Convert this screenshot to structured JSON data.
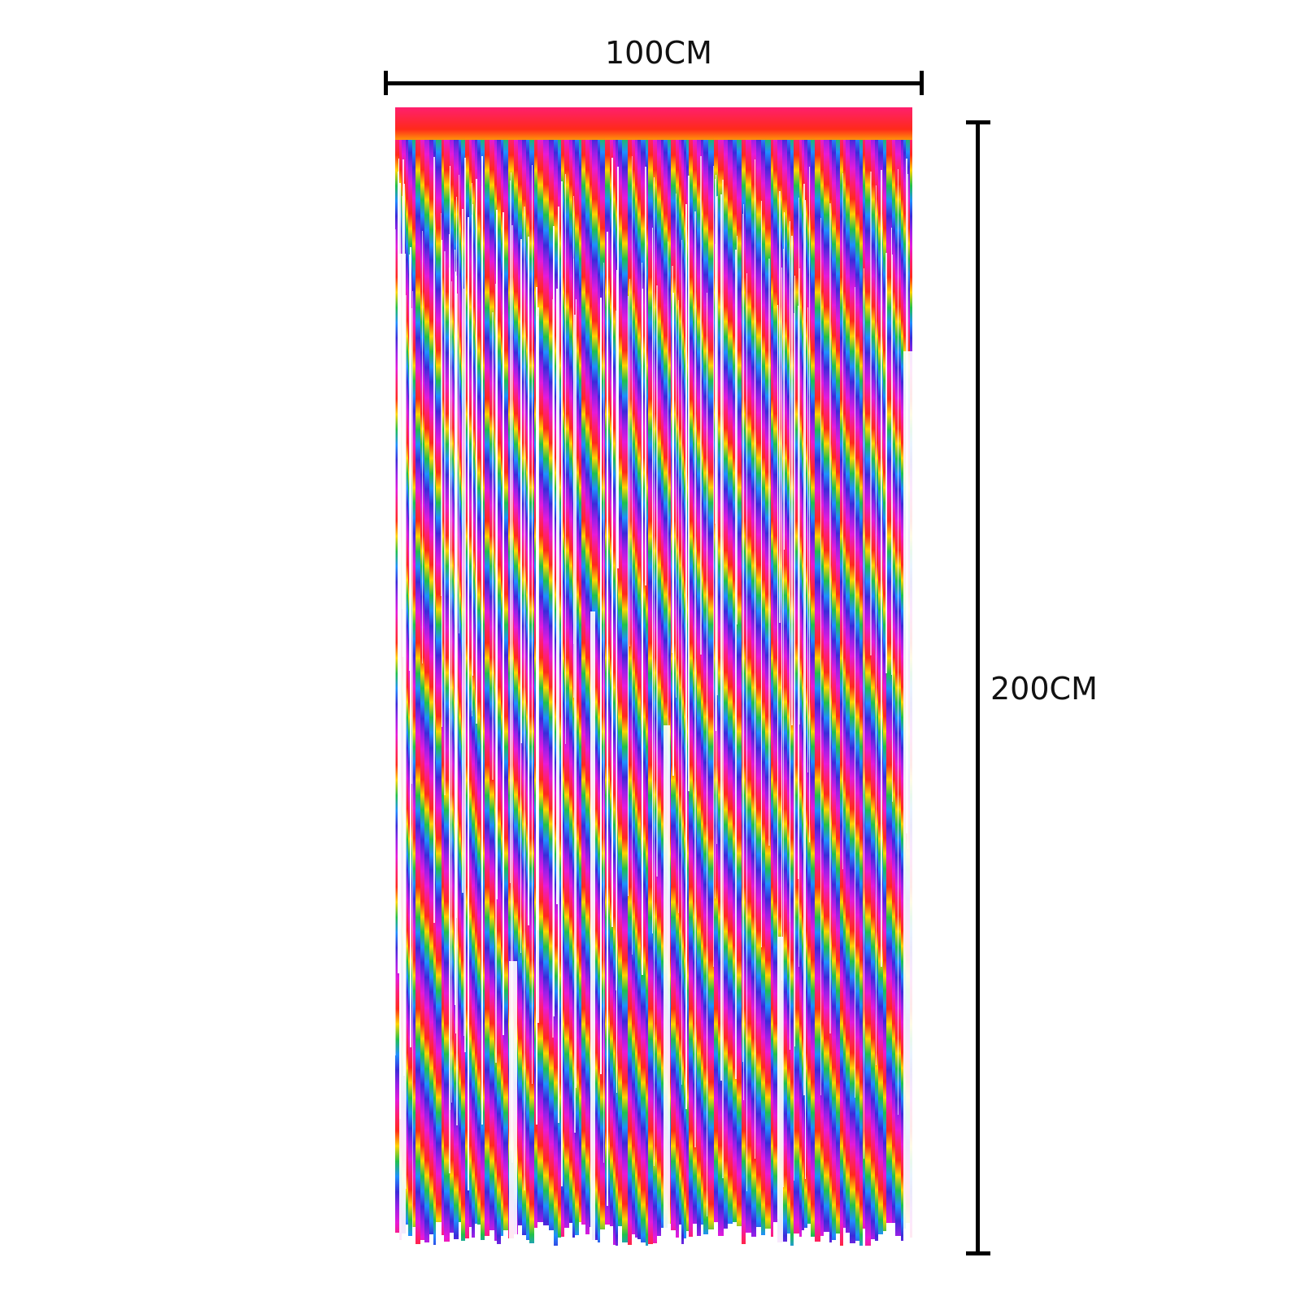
{
  "dimensions": {
    "width_label": "100CM",
    "height_label": "200CM"
  },
  "product": {
    "kind": "rainbow foil fringe curtain",
    "colors": [
      "#ff1f6e",
      "#ff2a1a",
      "#ffd400",
      "#21c14a",
      "#1f8fff",
      "#3a2bd9",
      "#9b1fe8",
      "#e61ad9"
    ],
    "line_color": "#000000"
  }
}
